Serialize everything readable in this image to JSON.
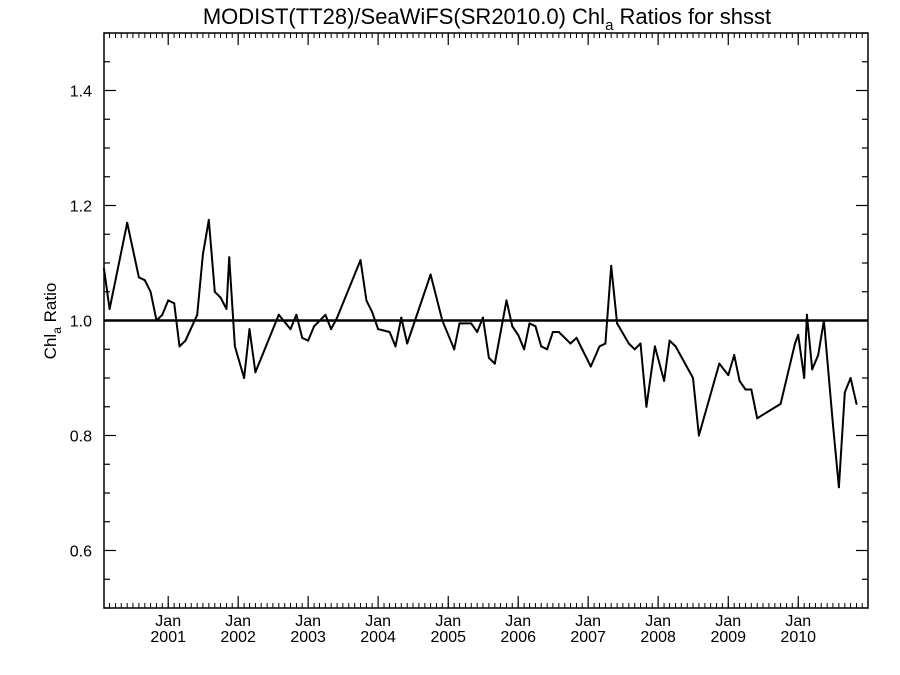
{
  "chart_data": {
    "type": "line",
    "title": {
      "prefix": "MODIST(TT28)/SeaWiFS(SR2010.0)  Chl",
      "subscript": "a",
      "suffix": " Ratios for shsst"
    },
    "ylabel": {
      "prefix": "Chl",
      "subscript": "a",
      "suffix": " Ratio"
    },
    "xlabel": "",
    "xlim": [
      "2000-02-01",
      "2010-12-31"
    ],
    "ylim": [
      0.5,
      1.5
    ],
    "y_ticks": [
      "0.6",
      "0.8",
      "1.0",
      "1.2",
      "1.4"
    ],
    "x_tick_labels": [
      {
        "month": "Jan",
        "year": "2001",
        "date": "2001-01-01"
      },
      {
        "month": "Jan",
        "year": "2002",
        "date": "2002-01-01"
      },
      {
        "month": "Jan",
        "year": "2003",
        "date": "2003-01-01"
      },
      {
        "month": "Jan",
        "year": "2004",
        "date": "2004-01-01"
      },
      {
        "month": "Jan",
        "year": "2005",
        "date": "2005-01-01"
      },
      {
        "month": "Jan",
        "year": "2006",
        "date": "2006-01-01"
      },
      {
        "month": "Jan",
        "year": "2007",
        "date": "2007-01-01"
      },
      {
        "month": "Jan",
        "year": "2008",
        "date": "2008-01-01"
      },
      {
        "month": "Jan",
        "year": "2009",
        "date": "2009-01-01"
      },
      {
        "month": "Jan",
        "year": "2010",
        "date": "2010-01-01"
      }
    ],
    "reference_line": 1.0,
    "grid": false,
    "color": "#000000",
    "series": [
      {
        "points": [
          [
            "2000-02-01",
            1.09
          ],
          [
            "2000-03-01",
            1.02
          ],
          [
            "2000-06-01",
            1.17
          ],
          [
            "2000-08-01",
            1.075
          ],
          [
            "2000-09-01",
            1.07
          ],
          [
            "2000-10-01",
            1.05
          ],
          [
            "2000-11-01",
            1.0
          ],
          [
            "2000-12-01",
            1.01
          ],
          [
            "2001-01-01",
            1.035
          ],
          [
            "2001-02-01",
            1.03
          ],
          [
            "2001-03-01",
            0.955
          ],
          [
            "2001-04-01",
            0.965
          ],
          [
            "2001-06-01",
            1.01
          ],
          [
            "2001-07-01",
            1.115
          ],
          [
            "2001-08-01",
            1.175
          ],
          [
            "2001-09-01",
            1.05
          ],
          [
            "2001-10-01",
            1.04
          ],
          [
            "2001-11-01",
            1.02
          ],
          [
            "2001-11-15",
            1.11
          ],
          [
            "2001-12-15",
            0.955
          ],
          [
            "2002-02-01",
            0.9
          ],
          [
            "2002-03-01",
            0.985
          ],
          [
            "2002-04-01",
            0.91
          ],
          [
            "2002-08-01",
            1.01
          ],
          [
            "2002-10-01",
            0.985
          ],
          [
            "2002-11-01",
            1.01
          ],
          [
            "2002-12-01",
            0.97
          ],
          [
            "2003-01-01",
            0.965
          ],
          [
            "2003-02-01",
            0.99
          ],
          [
            "2003-04-01",
            1.01
          ],
          [
            "2003-05-01",
            0.985
          ],
          [
            "2003-06-01",
            1.005
          ],
          [
            "2003-10-01",
            1.105
          ],
          [
            "2003-11-01",
            1.035
          ],
          [
            "2003-12-01",
            1.015
          ],
          [
            "2004-01-01",
            0.985
          ],
          [
            "2004-03-01",
            0.98
          ],
          [
            "2004-04-01",
            0.955
          ],
          [
            "2004-05-01",
            1.005
          ],
          [
            "2004-06-01",
            0.96
          ],
          [
            "2004-10-01",
            1.08
          ],
          [
            "2004-12-01",
            1.0
          ],
          [
            "2005-02-01",
            0.95
          ],
          [
            "2005-03-01",
            0.995
          ],
          [
            "2005-05-01",
            0.995
          ],
          [
            "2005-06-01",
            0.98
          ],
          [
            "2005-07-01",
            1.005
          ],
          [
            "2005-08-01",
            0.935
          ],
          [
            "2005-09-01",
            0.925
          ],
          [
            "2005-11-01",
            1.035
          ],
          [
            "2005-12-01",
            0.99
          ],
          [
            "2006-01-01",
            0.975
          ],
          [
            "2006-02-01",
            0.95
          ],
          [
            "2006-03-01",
            0.995
          ],
          [
            "2006-04-01",
            0.99
          ],
          [
            "2006-05-01",
            0.955
          ],
          [
            "2006-06-01",
            0.95
          ],
          [
            "2006-07-01",
            0.98
          ],
          [
            "2006-08-01",
            0.98
          ],
          [
            "2006-10-01",
            0.96
          ],
          [
            "2006-11-01",
            0.97
          ],
          [
            "2006-12-01",
            0.95
          ],
          [
            "2007-01-15",
            0.92
          ],
          [
            "2007-03-01",
            0.955
          ],
          [
            "2007-04-01",
            0.96
          ],
          [
            "2007-05-01",
            1.095
          ],
          [
            "2007-06-01",
            0.995
          ],
          [
            "2007-08-01",
            0.96
          ],
          [
            "2007-09-01",
            0.95
          ],
          [
            "2007-10-01",
            0.96
          ],
          [
            "2007-11-01",
            0.85
          ],
          [
            "2007-12-15",
            0.955
          ],
          [
            "2008-02-01",
            0.895
          ],
          [
            "2008-03-01",
            0.965
          ],
          [
            "2008-04-01",
            0.955
          ],
          [
            "2008-07-01",
            0.9
          ],
          [
            "2008-08-01",
            0.8
          ],
          [
            "2008-11-15",
            0.925
          ],
          [
            "2009-01-01",
            0.905
          ],
          [
            "2009-02-01",
            0.94
          ],
          [
            "2009-03-01",
            0.895
          ],
          [
            "2009-04-01",
            0.88
          ],
          [
            "2009-05-01",
            0.88
          ],
          [
            "2009-06-01",
            0.83
          ],
          [
            "2009-10-01",
            0.855
          ],
          [
            "2009-12-15",
            0.96
          ],
          [
            "2010-01-01",
            0.975
          ],
          [
            "2010-02-01",
            0.9
          ],
          [
            "2010-02-15",
            1.01
          ],
          [
            "2010-03-15",
            0.915
          ],
          [
            "2010-04-15",
            0.94
          ],
          [
            "2010-05-15",
            1.0
          ],
          [
            "2010-07-01",
            0.82
          ],
          [
            "2010-08-01",
            0.71
          ],
          [
            "2010-09-01",
            0.875
          ],
          [
            "2010-10-01",
            0.9
          ],
          [
            "2010-11-01",
            0.855
          ]
        ]
      }
    ]
  }
}
